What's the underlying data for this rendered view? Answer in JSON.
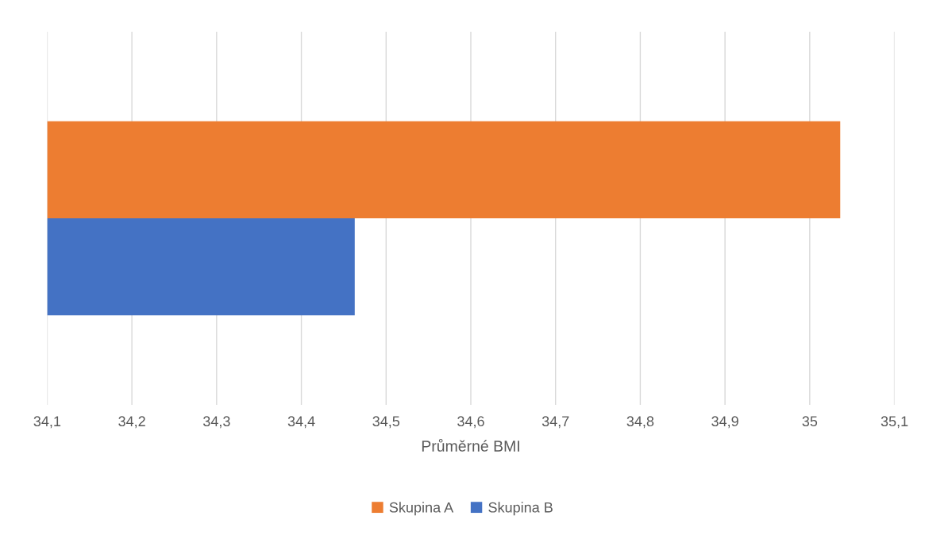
{
  "chart_data": {
    "type": "bar",
    "orientation": "horizontal",
    "xlabel": "Průměrné BMI",
    "categories": [
      null
    ],
    "series": [
      {
        "name": "Skupina A",
        "color": "#ed7d31",
        "values": [
          35.036
        ]
      },
      {
        "name": "Skupina B",
        "color": "#4472c4",
        "values": [
          34.463
        ]
      }
    ],
    "xlim": [
      34.1,
      35.1
    ],
    "xticks": [
      {
        "value": 34.1,
        "label": "34,1"
      },
      {
        "value": 34.2,
        "label": "34,2"
      },
      {
        "value": 34.3,
        "label": "34,3"
      },
      {
        "value": 34.4,
        "label": "34,4"
      },
      {
        "value": 34.5,
        "label": "34,5"
      },
      {
        "value": 34.6,
        "label": "34,6"
      },
      {
        "value": 34.7,
        "label": "34,7"
      },
      {
        "value": 34.8,
        "label": "34,8"
      },
      {
        "value": 34.9,
        "label": "34,9"
      },
      {
        "value": 35,
        "label": "35"
      },
      {
        "value": 35.1,
        "label": "35,1"
      }
    ],
    "grid": "x",
    "legend": "bottom",
    "tick_labels": "x"
  }
}
